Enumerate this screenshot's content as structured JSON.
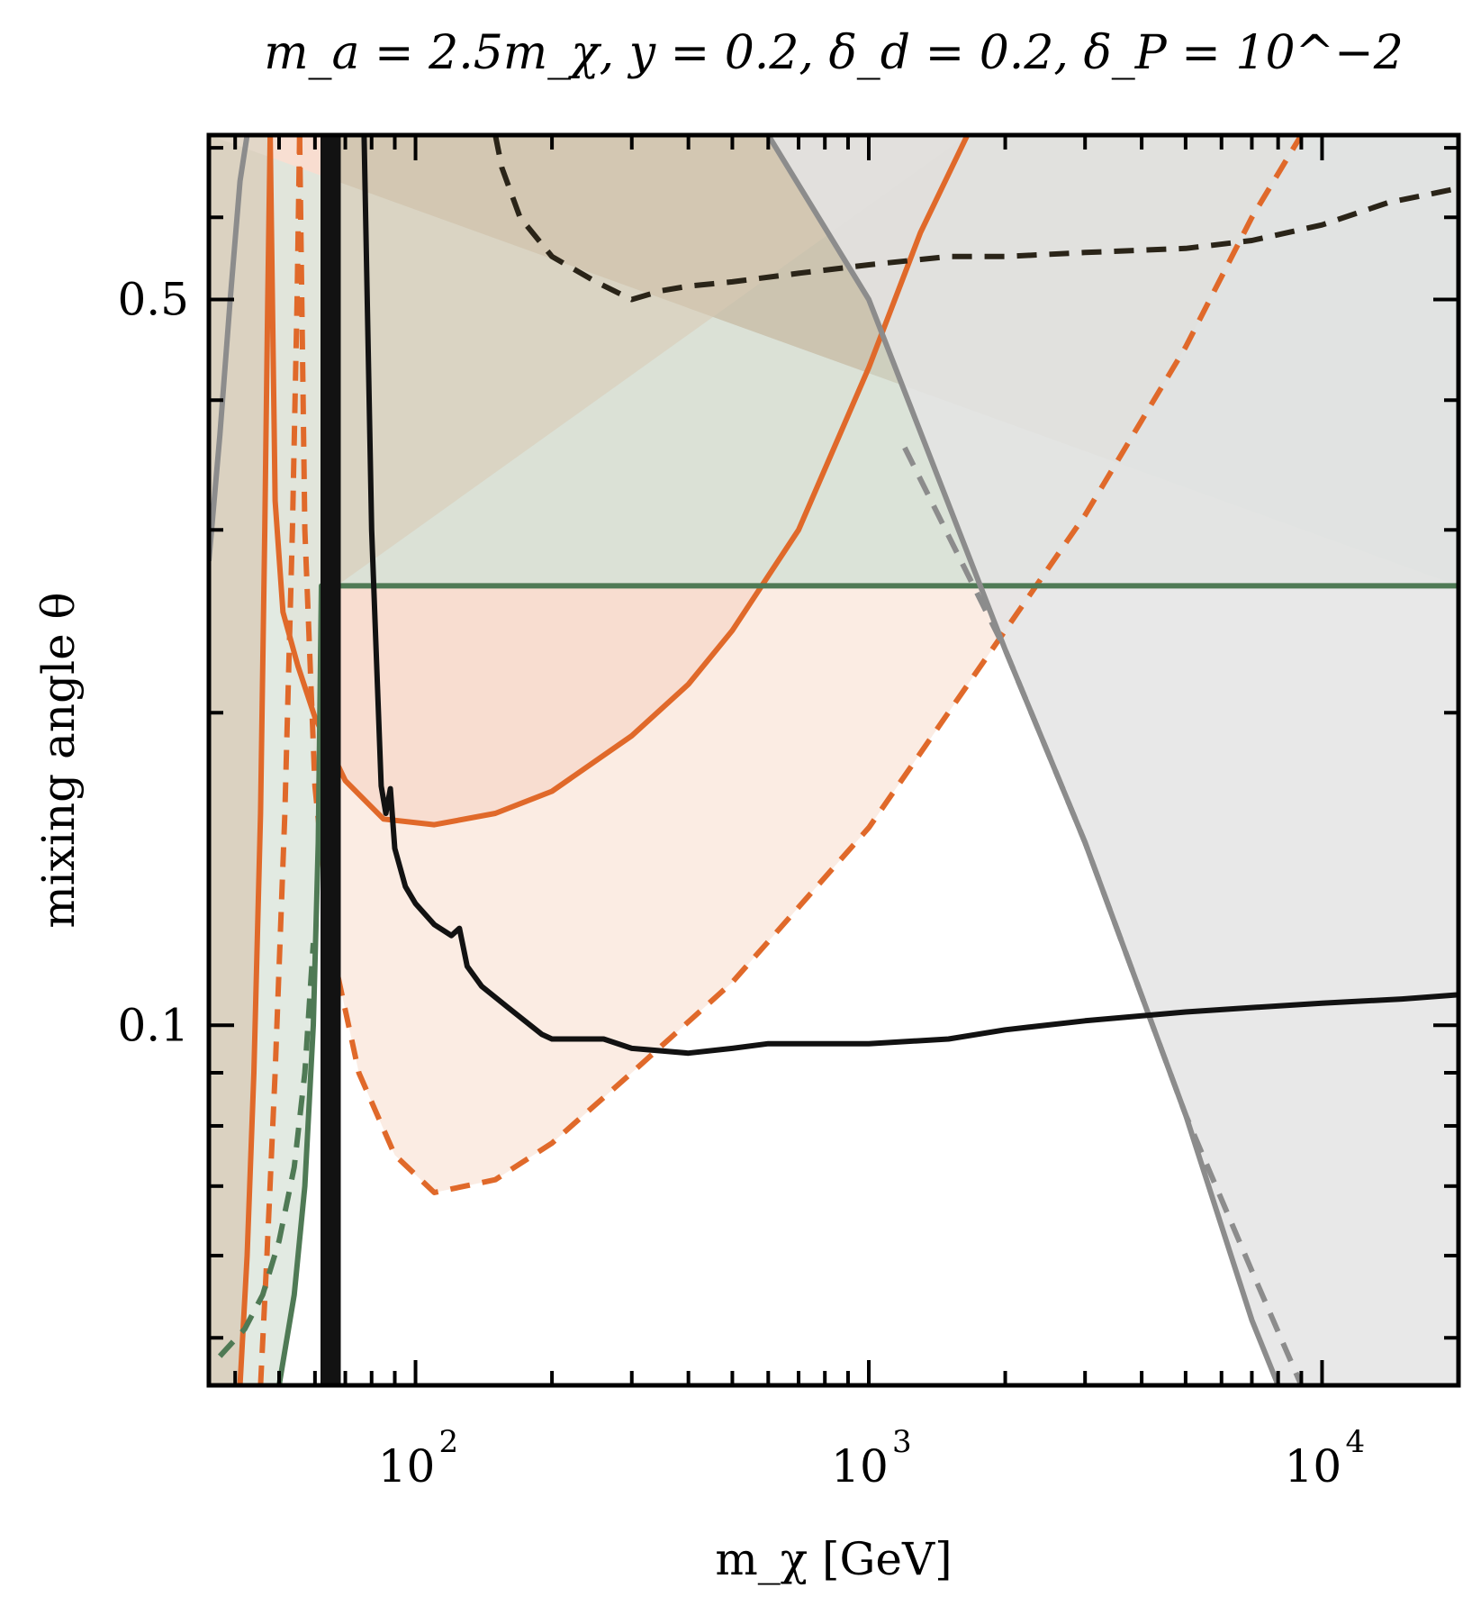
{
  "title": {
    "text": "m_a = 2.5m_χ,  y = 0.2,  δ_d = 0.2,  δ_P = 10^−2"
  },
  "chart_data": {
    "type": "line",
    "title": "m_a = 2.5m_χ, y = 0.2, δ_d = 0.2, δ_P = 10^−2",
    "xlabel": "m_χ [GeV]",
    "ylabel": "mixing angle θ",
    "xscale": "log",
    "yscale": "log",
    "xlim": [
      35,
      20000
    ],
    "ylim": [
      0.045,
      0.72
    ],
    "xticks": [
      {
        "value": 100,
        "base": "10",
        "exp": "2"
      },
      {
        "value": 1000,
        "base": "10",
        "exp": "3"
      },
      {
        "value": 10000,
        "base": "10",
        "exp": "4"
      }
    ],
    "yticks": [
      {
        "value": 0.5,
        "label": "0.5"
      },
      {
        "value": 0.1,
        "label": "0.1"
      }
    ],
    "grid": false,
    "legend": "none",
    "colors": {
      "orange": "#e0692a",
      "orange_fill": "#fbece3",
      "orange_fill_dark": "#f7dccd",
      "green": "#4f7a55",
      "green_fill": "#dde6dd",
      "gray": "#8c8c8c",
      "gray_fill": "#e4e4e4",
      "black": "#121212",
      "dark_dashed": "#2a2418",
      "top_fill": "#d8cab5"
    },
    "series": [
      {
        "style": "solid",
        "color": "orange",
        "x": [
          47.8,
          49,
          51,
          55,
          60,
          70,
          85,
          110,
          150,
          200,
          300,
          400,
          500,
          700,
          1000,
          1300,
          1650
        ],
        "y": [
          0.72,
          0.32,
          0.25,
          0.222,
          0.198,
          0.172,
          0.158,
          0.156,
          0.16,
          0.168,
          0.19,
          0.213,
          0.24,
          0.3,
          0.43,
          0.58,
          0.72
        ]
      },
      {
        "style": "solid",
        "color": "orange",
        "x": [
          41,
          42.5,
          44,
          45.5,
          46.5,
          47.2,
          47.8
        ],
        "y": [
          0.045,
          0.06,
          0.09,
          0.16,
          0.3,
          0.5,
          0.72
        ]
      },
      {
        "style": "dashed",
        "color": "orange",
        "x": [
          55.5,
          57,
          60,
          65,
          75,
          90,
          110,
          150,
          200,
          300,
          500,
          1000,
          2000,
          3000,
          5000,
          7000,
          9000
        ],
        "y": [
          0.72,
          0.3,
          0.17,
          0.12,
          0.09,
          0.075,
          0.069,
          0.071,
          0.077,
          0.09,
          0.11,
          0.155,
          0.24,
          0.31,
          0.45,
          0.6,
          0.72
        ]
      },
      {
        "style": "dashed",
        "color": "orange",
        "x": [
          45.5,
          47,
          49,
          51.5,
          53.5,
          54.8,
          55.5
        ],
        "y": [
          0.045,
          0.06,
          0.09,
          0.16,
          0.3,
          0.5,
          0.72
        ]
      },
      {
        "style": "solid",
        "color": "green",
        "x": [
          50,
          54,
          57,
          59.5,
          61,
          62,
          20000
        ],
        "y": [
          0.045,
          0.055,
          0.07,
          0.1,
          0.15,
          0.265,
          0.265
        ]
      },
      {
        "style": "dashed",
        "color": "green",
        "x": [
          37,
          42,
          46,
          50,
          54,
          57,
          59.5
        ],
        "y": [
          0.048,
          0.051,
          0.055,
          0.062,
          0.073,
          0.09,
          0.12
        ]
      },
      {
        "style": "solid",
        "color": "gray",
        "x": [
          35,
          37,
          39,
          41,
          42.5
        ],
        "y": [
          0.28,
          0.37,
          0.5,
          0.65,
          0.72
        ]
      },
      {
        "style": "solid",
        "color": "gray",
        "x": [
          600,
          1000,
          2000,
          3000,
          5000,
          7000,
          8000
        ],
        "y": [
          0.72,
          0.5,
          0.23,
          0.15,
          0.082,
          0.052,
          0.045
        ]
      },
      {
        "style": "dashed",
        "color": "gray",
        "x": [
          1200,
          2000,
          3000,
          5000,
          7000,
          9000
        ],
        "y": [
          0.36,
          0.23,
          0.15,
          0.082,
          0.058,
          0.045
        ]
      },
      {
        "style": "solid",
        "color": "black",
        "x": [
          77,
          80,
          84,
          86,
          88,
          90,
          95,
          100,
          110,
          120,
          125,
          130,
          140,
          160,
          190,
          200,
          260,
          300,
          400,
          500,
          600,
          800,
          1000,
          1500,
          2000,
          3000,
          5000,
          7000,
          10000,
          15000,
          20000
        ],
        "y": [
          0.72,
          0.3,
          0.17,
          0.16,
          0.169,
          0.148,
          0.136,
          0.131,
          0.125,
          0.122,
          0.124,
          0.114,
          0.109,
          0.104,
          0.098,
          0.097,
          0.097,
          0.095,
          0.094,
          0.095,
          0.096,
          0.096,
          0.096,
          0.097,
          0.099,
          0.101,
          0.103,
          0.104,
          0.105,
          0.106,
          0.107
        ]
      },
      {
        "style": "dashed",
        "color": "dark_dashed",
        "x": [
          150,
          155,
          170,
          200,
          250,
          300,
          350,
          400,
          500,
          700,
          1000,
          1500,
          2000,
          3000,
          5000,
          7000,
          10000,
          14000,
          20000
        ],
        "y": [
          0.72,
          0.67,
          0.6,
          0.55,
          0.52,
          0.5,
          0.51,
          0.515,
          0.52,
          0.53,
          0.54,
          0.55,
          0.55,
          0.555,
          0.56,
          0.57,
          0.59,
          0.62,
          0.64
        ]
      },
      {
        "style": "solid",
        "color": "black",
        "x": [
          63,
          63,
          64.5,
          64.5,
          67,
          67
        ],
        "y": [
          0.045,
          0.72,
          0.72,
          0.045,
          0.045,
          0.72
        ]
      },
      {
        "style": "dashed",
        "color": "black",
        "x": [
          65.5,
          65.5
        ],
        "y": [
          0.045,
          0.72
        ]
      }
    ]
  }
}
